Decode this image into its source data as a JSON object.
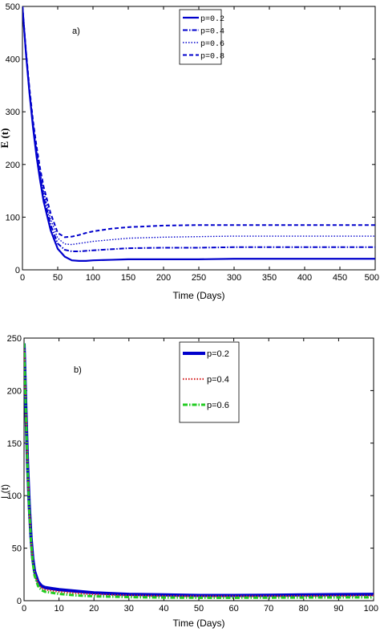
{
  "chart_data": [
    {
      "type": "line",
      "panel_label": "a)",
      "xlabel": "Time (Days)",
      "ylabel": "E (t)",
      "xlim": [
        0,
        500
      ],
      "ylim": [
        0,
        500
      ],
      "xticks": [
        0,
        50,
        100,
        150,
        200,
        250,
        300,
        350,
        400,
        450,
        500
      ],
      "yticks": [
        0,
        100,
        200,
        300,
        400,
        500
      ],
      "legend_position": "top-right",
      "line_color": "#0000cc",
      "series": [
        {
          "name": "p=0.2",
          "style": "solid",
          "x": [
            0,
            5,
            10,
            15,
            20,
            25,
            30,
            40,
            50,
            60,
            70,
            80,
            90,
            100,
            125,
            150,
            200,
            250,
            300,
            350,
            400,
            450,
            500
          ],
          "y": [
            500,
            410,
            335,
            270,
            215,
            170,
            130,
            75,
            40,
            25,
            18,
            17,
            17,
            18,
            19,
            20,
            20,
            20,
            21,
            21,
            21,
            21,
            21
          ]
        },
        {
          "name": "p=0.4",
          "style": "dashdot",
          "x": [
            0,
            5,
            10,
            15,
            20,
            25,
            30,
            40,
            50,
            60,
            70,
            80,
            90,
            100,
            125,
            150,
            200,
            250,
            300,
            350,
            400,
            450,
            500
          ],
          "y": [
            500,
            412,
            338,
            275,
            222,
            178,
            140,
            85,
            50,
            38,
            35,
            35,
            36,
            37,
            39,
            41,
            42,
            42,
            43,
            43,
            43,
            43,
            43
          ]
        },
        {
          "name": "p=0.6",
          "style": "dotted",
          "x": [
            0,
            5,
            10,
            15,
            20,
            25,
            30,
            40,
            50,
            60,
            70,
            80,
            90,
            100,
            125,
            150,
            200,
            250,
            300,
            350,
            400,
            450,
            500
          ],
          "y": [
            500,
            414,
            341,
            279,
            228,
            186,
            149,
            96,
            60,
            49,
            48,
            50,
            52,
            54,
            57,
            60,
            62,
            63,
            64,
            64,
            64,
            64,
            64
          ]
        },
        {
          "name": "p=0.8",
          "style": "dashed",
          "x": [
            0,
            5,
            10,
            15,
            20,
            25,
            30,
            40,
            50,
            60,
            70,
            80,
            90,
            100,
            125,
            150,
            200,
            250,
            300,
            350,
            400,
            450,
            500
          ],
          "y": [
            500,
            416,
            344,
            283,
            234,
            193,
            158,
            107,
            70,
            62,
            63,
            66,
            70,
            73,
            78,
            81,
            84,
            85,
            85,
            85,
            85,
            85,
            85
          ]
        }
      ]
    },
    {
      "type": "line",
      "panel_label": "b)",
      "xlabel": "Time (Days)",
      "ylabel": "I (t)",
      "xlim": [
        0,
        100
      ],
      "ylim": [
        0,
        250
      ],
      "xticks": [
        0,
        10,
        20,
        30,
        40,
        50,
        60,
        70,
        80,
        90,
        100
      ],
      "yticks": [
        0,
        50,
        100,
        150,
        200,
        250
      ],
      "legend_position": "top-right",
      "series": [
        {
          "name": "p=0.2",
          "style": "solid",
          "color": "#0000cc",
          "x": [
            0,
            0.5,
            1,
            1.5,
            2,
            2.5,
            3,
            4,
            5,
            6,
            8,
            10,
            15,
            20,
            30,
            40,
            50,
            60,
            70,
            80,
            90,
            100
          ],
          "y": [
            245,
            185,
            130,
            90,
            60,
            40,
            28,
            18,
            14,
            12.5,
            11.5,
            10.5,
            9,
            7.5,
            6,
            5.5,
            5,
            5,
            5.2,
            5.5,
            5.8,
            6
          ]
        },
        {
          "name": "p=0.4",
          "style": "dotted",
          "color": "#d62728",
          "x": [
            0,
            0.5,
            1,
            1.5,
            2,
            2.5,
            3,
            4,
            5,
            6,
            8,
            10,
            15,
            20,
            30,
            40,
            50,
            60,
            70,
            80,
            90,
            100
          ],
          "y": [
            245,
            184,
            128,
            88,
            58,
            38,
            26,
            16,
            12,
            10.5,
            9.5,
            8.5,
            7,
            6,
            5,
            4.5,
            4.2,
            4.2,
            4.3,
            4.5,
            4.6,
            4.8
          ]
        },
        {
          "name": "p=0.6",
          "style": "dashdot",
          "color": "#22cc22",
          "x": [
            0,
            0.5,
            1,
            1.5,
            2,
            2.5,
            3,
            4,
            5,
            6,
            8,
            10,
            15,
            20,
            30,
            40,
            50,
            60,
            70,
            80,
            90,
            100
          ],
          "y": [
            245,
            183,
            126,
            86,
            56,
            36,
            24,
            14,
            10,
            8.5,
            7.5,
            6.5,
            5,
            4.2,
            3.4,
            3,
            2.8,
            2.8,
            2.9,
            3,
            3.1,
            3.2
          ]
        }
      ]
    }
  ]
}
